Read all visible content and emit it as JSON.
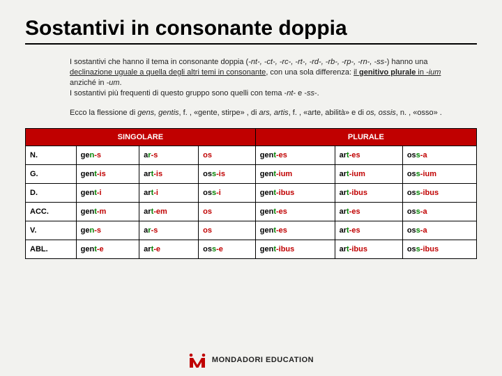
{
  "title": "Sostantivi in consonante doppia",
  "para1_pre": "I sostantivi che hanno il tema in consonante doppia (",
  "para1_list": "-nt-,  -ct-, -rc-,  -rt-,  -rd-,  -rb-,  -rp-,  -rn-, -ss-",
  "para1_mid1": ") hanno una ",
  "para1_u1": "declinazione uguale a quella degli altri temi in consonante",
  "para1_mid2": ", con una sola differenza: ",
  "para1_u2": "il ",
  "para1_gen": "genitivo plurale",
  "para1_in": " in ",
  "para1_ium": "-ium",
  "para1_not": " anziché in ",
  "para1_um": "-um",
  "para1_end": ".",
  "para1_line2a": "I sostantivi più frequenti di questo gruppo sono quelli con tema -",
  "para1_nt": "nt",
  "para1_and": "- e -",
  "para1_ss": "ss",
  "para1_dash": "-.",
  "para2_a": "Ecco la flessione di ",
  "para2_g1": "gens, gentis",
  "para2_b": ", f. , «gente, stirpe» , di ",
  "para2_g2": "ars, artis",
  "para2_c": ", f. , «arte, abilità» e di ",
  "para2_g3": "os, ossis",
  "para2_d": ", n. , «osso» .",
  "th_sing": "SINGOLARE",
  "th_plur": "PLURALE",
  "cases": [
    "N.",
    "G.",
    "D.",
    "ACC.",
    "V.",
    "ABL."
  ],
  "rows": [
    [
      [
        "ge",
        "n",
        "-s"
      ],
      [
        "a",
        "r",
        "-s"
      ],
      [
        "",
        "",
        "os"
      ],
      [
        "gen",
        "t",
        "-es"
      ],
      [
        "ar",
        "t",
        "-es"
      ],
      [
        "os",
        "s",
        "-a"
      ]
    ],
    [
      [
        "gen",
        "t",
        "-is"
      ],
      [
        "ar",
        "t",
        "-is"
      ],
      [
        "os",
        "s",
        "-is"
      ],
      [
        "gen",
        "t",
        "-ium"
      ],
      [
        "ar",
        "t",
        "-ium"
      ],
      [
        "os",
        "s",
        "-ium"
      ]
    ],
    [
      [
        "gen",
        "t",
        "-i"
      ],
      [
        "ar",
        "t",
        "-i"
      ],
      [
        "os",
        "s",
        "-i"
      ],
      [
        "gen",
        "t",
        "-ibus"
      ],
      [
        "ar",
        "t",
        "-ibus"
      ],
      [
        "os",
        "s",
        "-ibus"
      ]
    ],
    [
      [
        "gen",
        "t",
        "-m"
      ],
      [
        "ar",
        "t",
        "-em"
      ],
      [
        "",
        "",
        "os"
      ],
      [
        "gen",
        "t",
        "-es"
      ],
      [
        "ar",
        "t",
        "-es"
      ],
      [
        "os",
        "s",
        "-a"
      ]
    ],
    [
      [
        "ge",
        "n",
        "-s"
      ],
      [
        "a",
        "r",
        "-s"
      ],
      [
        "",
        "",
        "os"
      ],
      [
        "gen",
        "t",
        "-es"
      ],
      [
        "ar",
        "t",
        "-es"
      ],
      [
        "os",
        "s",
        "-a"
      ]
    ],
    [
      [
        "gen",
        "t",
        "-e"
      ],
      [
        "ar",
        "t",
        "-e"
      ],
      [
        "os",
        "s",
        "-e"
      ],
      [
        "gen",
        "t",
        "-ibus"
      ],
      [
        "ar",
        "t",
        "-ibus"
      ],
      [
        "os",
        "s",
        "-ibus"
      ]
    ]
  ],
  "footer": "MONDADORI EDUCATION",
  "colors": {
    "header_bg": "#c00000",
    "suffix": "#c00000",
    "stem_last": "#008000",
    "page_bg": "#f2f2ef"
  }
}
